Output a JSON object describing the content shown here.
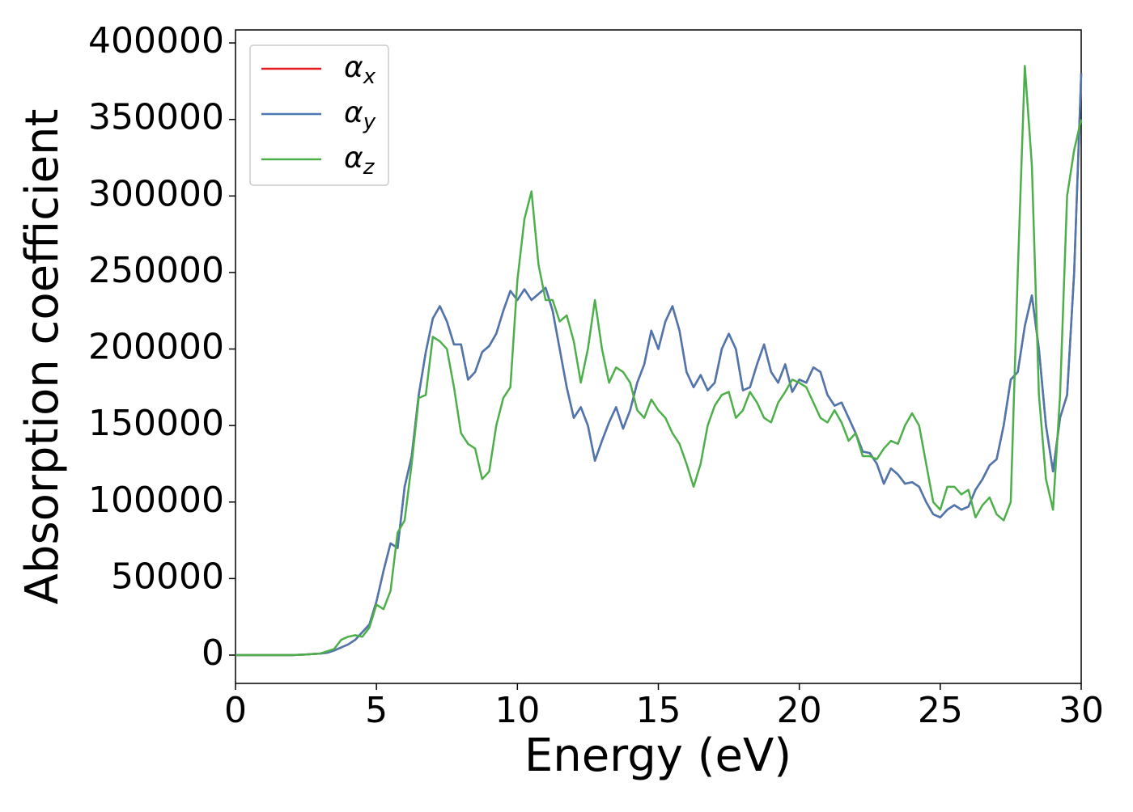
{
  "chart_data": {
    "type": "line",
    "xlabel": "Energy (eV)",
    "ylabel": "Absorption coefficient",
    "x": [
      0,
      0.25,
      0.5,
      0.75,
      1,
      1.25,
      1.5,
      1.75,
      2,
      2.25,
      2.5,
      2.75,
      3,
      3.25,
      3.5,
      3.75,
      4,
      4.25,
      4.5,
      4.75,
      5,
      5.25,
      5.5,
      5.75,
      6,
      6.25,
      6.5,
      6.75,
      7,
      7.25,
      7.5,
      7.75,
      8,
      8.25,
      8.5,
      8.75,
      9,
      9.25,
      9.5,
      9.75,
      10,
      10.25,
      10.5,
      10.75,
      11,
      11.25,
      11.5,
      11.75,
      12,
      12.25,
      12.5,
      12.75,
      13,
      13.25,
      13.5,
      13.75,
      14,
      14.25,
      14.5,
      14.75,
      15,
      15.25,
      15.5,
      15.75,
      16,
      16.25,
      16.5,
      16.75,
      17,
      17.25,
      17.5,
      17.75,
      18,
      18.25,
      18.5,
      18.75,
      19,
      19.25,
      19.5,
      19.75,
      20,
      20.25,
      20.5,
      20.75,
      21,
      21.25,
      21.5,
      21.75,
      22,
      22.25,
      22.5,
      22.75,
      23,
      23.25,
      23.5,
      23.75,
      24,
      24.25,
      24.5,
      24.75,
      25,
      25.25,
      25.5,
      25.75,
      26,
      26.25,
      26.5,
      26.75,
      27,
      27.25,
      27.5,
      27.75,
      28,
      28.25,
      28.5,
      28.75,
      29,
      29.25,
      29.5,
      29.75,
      30
    ],
    "series": [
      {
        "name": "αx",
        "color": "#e41a1c",
        "values": [
          0,
          0,
          0,
          0,
          0,
          0,
          0,
          0,
          0,
          200,
          400,
          700,
          1000,
          1500,
          3000,
          5000,
          7000,
          10000,
          15000,
          20000,
          35000,
          55000,
          73000,
          70000,
          110000,
          130000,
          170000,
          198000,
          220000,
          228000,
          218000,
          203000,
          203000,
          180000,
          185000,
          198000,
          202000,
          210000,
          225000,
          238000,
          232000,
          239000,
          232000,
          236000,
          240000,
          225000,
          200000,
          175000,
          155000,
          162000,
          150000,
          127000,
          140000,
          152000,
          162000,
          148000,
          160000,
          178000,
          190000,
          212000,
          200000,
          218000,
          228000,
          212000,
          185000,
          175000,
          183000,
          173000,
          178000,
          200000,
          210000,
          200000,
          173000,
          175000,
          190000,
          203000,
          185000,
          178000,
          190000,
          172000,
          180000,
          178000,
          188000,
          185000,
          170000,
          163000,
          165000,
          155000,
          145000,
          133000,
          132000,
          125000,
          112000,
          122000,
          118000,
          112000,
          113000,
          110000,
          100000,
          92000,
          90000,
          95000,
          98000,
          95000,
          97000,
          108000,
          115000,
          124000,
          128000,
          150000,
          180000,
          185000,
          215000,
          235000,
          200000,
          150000,
          120000,
          155000,
          170000,
          250000,
          380000
        ]
      },
      {
        "name": "αy",
        "color": "#4a78b0",
        "values": [
          0,
          0,
          0,
          0,
          0,
          0,
          0,
          0,
          0,
          200,
          400,
          700,
          1000,
          1500,
          3000,
          5000,
          7000,
          10000,
          15000,
          20000,
          35000,
          55000,
          73000,
          70000,
          110000,
          130000,
          170000,
          198000,
          220000,
          228000,
          218000,
          203000,
          203000,
          180000,
          185000,
          198000,
          202000,
          210000,
          225000,
          238000,
          232000,
          239000,
          232000,
          236000,
          240000,
          225000,
          200000,
          175000,
          155000,
          162000,
          150000,
          127000,
          140000,
          152000,
          162000,
          148000,
          160000,
          178000,
          190000,
          212000,
          200000,
          218000,
          228000,
          212000,
          185000,
          175000,
          183000,
          173000,
          178000,
          200000,
          210000,
          200000,
          173000,
          175000,
          190000,
          203000,
          185000,
          178000,
          190000,
          172000,
          180000,
          178000,
          188000,
          185000,
          170000,
          163000,
          165000,
          155000,
          145000,
          133000,
          132000,
          125000,
          112000,
          122000,
          118000,
          112000,
          113000,
          110000,
          100000,
          92000,
          90000,
          95000,
          98000,
          95000,
          97000,
          108000,
          115000,
          124000,
          128000,
          150000,
          180000,
          185000,
          215000,
          235000,
          200000,
          150000,
          120000,
          155000,
          170000,
          250000,
          380000
        ]
      },
      {
        "name": "αz",
        "color": "#4daf4a",
        "values": [
          0,
          0,
          0,
          0,
          0,
          0,
          0,
          0,
          0,
          200,
          400,
          700,
          1000,
          2500,
          4000,
          10000,
          12000,
          13000,
          12000,
          18000,
          33000,
          30000,
          42000,
          80000,
          88000,
          125000,
          168000,
          170000,
          208000,
          205000,
          200000,
          175000,
          145000,
          138000,
          135000,
          115000,
          120000,
          150000,
          168000,
          175000,
          245000,
          285000,
          303000,
          255000,
          232000,
          232000,
          218000,
          222000,
          205000,
          178000,
          200000,
          232000,
          200000,
          178000,
          188000,
          185000,
          178000,
          160000,
          155000,
          167000,
          160000,
          155000,
          145000,
          138000,
          125000,
          110000,
          125000,
          150000,
          163000,
          170000,
          172000,
          155000,
          160000,
          172000,
          165000,
          155000,
          152000,
          165000,
          172000,
          180000,
          178000,
          175000,
          165000,
          155000,
          152000,
          160000,
          152000,
          140000,
          145000,
          130000,
          130000,
          128000,
          135000,
          140000,
          138000,
          150000,
          158000,
          150000,
          125000,
          100000,
          95000,
          110000,
          110000,
          105000,
          108000,
          90000,
          98000,
          103000,
          92000,
          88000,
          100000,
          250000,
          385000,
          320000,
          170000,
          115000,
          95000,
          170000,
          300000,
          330000,
          350000
        ]
      }
    ],
    "xlim": [
      0,
      30
    ],
    "xticks": [
      0,
      5,
      10,
      15,
      20,
      25,
      30
    ],
    "ylim": [
      -18500,
      408500
    ],
    "yticks": [
      0,
      50000,
      100000,
      150000,
      200000,
      250000,
      300000,
      350000,
      400000
    ],
    "grid": false,
    "legend": "upper left"
  }
}
